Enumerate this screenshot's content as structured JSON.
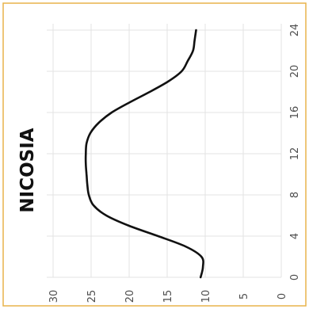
{
  "chart_data": {
    "type": "line",
    "title": "NICOSIA",
    "xlabel": "",
    "ylabel": "",
    "orientation": "rotated-90",
    "xlim": [
      0,
      24
    ],
    "ylim": [
      0,
      30
    ],
    "x_ticks": [
      "0",
      "4",
      "8",
      "12",
      "16",
      "20",
      "24"
    ],
    "y_ticks": [
      "0",
      "5",
      "10",
      "15",
      "20",
      "25",
      "30"
    ],
    "grid": true,
    "series": [
      {
        "x": [
          0,
          1,
          2,
          3,
          4,
          5,
          6,
          7,
          8,
          9,
          10,
          11,
          12,
          13,
          14,
          15,
          16,
          17,
          18,
          19,
          20,
          21,
          22,
          23,
          24
        ],
        "values": [
          10.6,
          10.3,
          10.5,
          12.6,
          16.2,
          20.0,
          23.0,
          24.7,
          25.3,
          25.5,
          25.6,
          25.7,
          25.7,
          25.6,
          25.1,
          24.0,
          22.3,
          19.9,
          17.3,
          14.9,
          13.1,
          12.3,
          11.6,
          11.4,
          11.2
        ],
        "color": "#111111"
      }
    ],
    "frame_color": "#e8b44a",
    "grid_color": "#e3e3e3"
  }
}
